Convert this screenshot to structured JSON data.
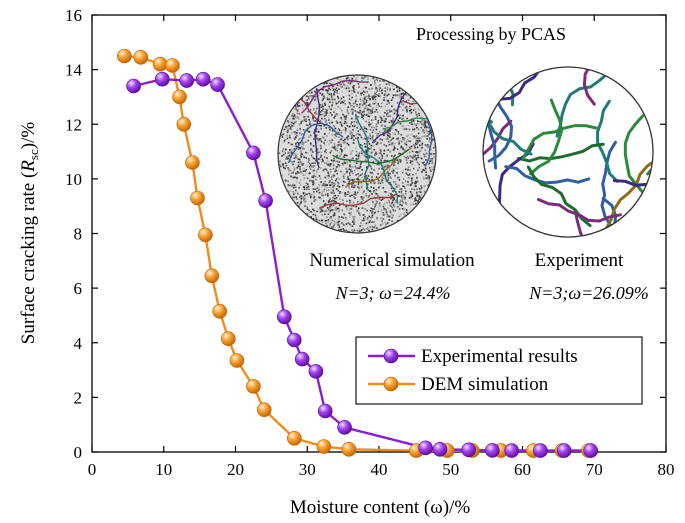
{
  "chart_data": {
    "type": "line",
    "xlabel": "Moisture content (ω)/%",
    "ylabel": "Surface cracking rate (Rsc)/%",
    "ylabel_parts": {
      "pre": "Surface cracking rate (",
      "italic": "R",
      "sub": "sc",
      "post": ")/%"
    },
    "xlim": [
      0,
      80
    ],
    "ylim": [
      0,
      16
    ],
    "xticks": [
      0,
      10,
      20,
      30,
      40,
      50,
      60,
      70,
      80
    ],
    "yticks": [
      0,
      2,
      4,
      6,
      8,
      10,
      12,
      14,
      16
    ],
    "series": [
      {
        "name": "Experimental results",
        "color": "#8b1fd0",
        "x": [
          5.8,
          9.8,
          13.2,
          15.5,
          17.5,
          22.5,
          24.2,
          26.8,
          28.2,
          29.3,
          31.2,
          32.5,
          35.2,
          46.5,
          48.5,
          52.5,
          55.8,
          58.5,
          62.5,
          65.8,
          69.5
        ],
        "y": [
          13.4,
          13.65,
          13.6,
          13.65,
          13.45,
          10.95,
          9.2,
          4.95,
          4.1,
          3.4,
          2.95,
          1.5,
          0.9,
          0.15,
          0.1,
          0.08,
          0.06,
          0.05,
          0.05,
          0.05,
          0.05
        ]
      },
      {
        "name": "DEM simulation",
        "color": "#f08c1a",
        "x": [
          4.5,
          6.8,
          9.5,
          11.2,
          12.2,
          12.8,
          14.0,
          14.7,
          15.8,
          16.7,
          17.8,
          19.0,
          20.2,
          22.5,
          24.0,
          28.2,
          32.3,
          35.8,
          45.2,
          49.5,
          53.0,
          57.0,
          61.5,
          65.5,
          69.2
        ],
        "y": [
          14.5,
          14.45,
          14.2,
          14.15,
          13.0,
          12.0,
          10.6,
          9.3,
          7.95,
          6.45,
          5.15,
          4.15,
          3.35,
          2.4,
          1.55,
          0.5,
          0.2,
          0.1,
          0.05,
          0.05,
          0.05,
          0.05,
          0.05,
          0.05,
          0.05
        ]
      }
    ],
    "legend": {
      "position": "center-right"
    },
    "annotations": {
      "title": "Processing by PCAS",
      "left_caption": "Numerical simulation",
      "left_sub": "N=3; ω=24.4%",
      "right_caption": "Experiment",
      "right_sub": "N=3;ω=26.09%"
    }
  }
}
